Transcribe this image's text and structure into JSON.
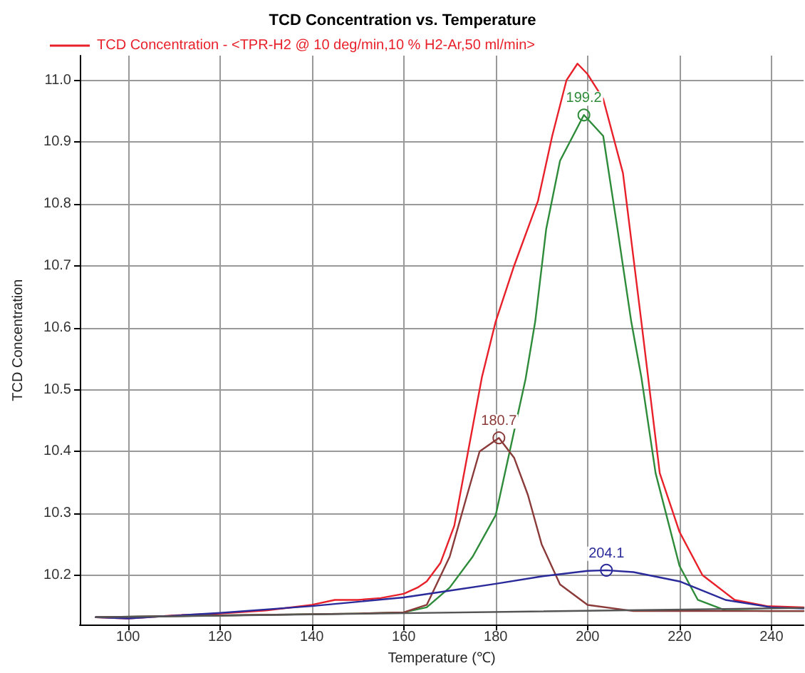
{
  "chart_data": {
    "type": "line",
    "title": "TCD Concentration vs. Temperature",
    "xlabel": "Temperature (℃)",
    "ylabel": "TCD Concentration",
    "xlim": [
      89.5,
      247
    ],
    "xticks": [
      100,
      120,
      140,
      160,
      180,
      200,
      220,
      240
    ],
    "ylim": [
      10.12,
      11.04
    ],
    "yticks": [
      10.2,
      10.3,
      10.4,
      10.5,
      10.6,
      10.7,
      10.8,
      10.9,
      {
        "value": 11,
        "label": "11.0"
      }
    ],
    "grid": true,
    "legend": "top left",
    "marker": "none",
    "line_style": "solid",
    "series": [
      {
        "name": "TCD Concentration - <TPR-H2 @ 10 deg/min,10 % H2-Ar,50 ml/min>",
        "color": "#e8202a",
        "x": [
          93,
          100,
          110,
          120,
          130,
          140,
          145,
          150,
          155,
          160,
          163,
          165,
          168,
          171,
          174,
          177,
          180,
          184,
          189.2,
          192.3,
          195.4,
          197.8,
          200,
          203.4,
          207.7,
          211.7,
          215.7,
          220,
          225,
          232,
          239,
          247
        ],
        "values": [
          10.132,
          10.13,
          10.135,
          10.138,
          10.143,
          10.152,
          10.16,
          10.16,
          10.163,
          10.17,
          10.18,
          10.19,
          10.22,
          10.28,
          10.4,
          10.52,
          10.61,
          10.7,
          10.805,
          10.91,
          11.0,
          11.027,
          11.01,
          10.97,
          10.85,
          10.61,
          10.365,
          10.27,
          10.2,
          10.16,
          10.15,
          10.148
        ]
      },
      {
        "color": "#2e8b3a",
        "x": [
          93,
          120,
          150,
          160,
          165,
          170,
          175,
          180,
          186.5,
          188.6,
          191,
          194,
          199.2,
          203.4,
          206.5,
          209.5,
          211.7,
          214.8,
          220,
          224,
          230,
          240,
          247
        ],
        "values": [
          10.132,
          10.135,
          10.138,
          10.14,
          10.148,
          10.18,
          10.23,
          10.297,
          10.517,
          10.61,
          10.76,
          10.87,
          10.944,
          10.91,
          10.76,
          10.61,
          10.52,
          10.365,
          10.215,
          10.16,
          10.143,
          10.142,
          10.142
        ]
      },
      {
        "color": "#8b3a3a",
        "x": [
          93,
          120,
          150,
          160,
          165,
          170,
          173.8,
          176.5,
          180.7,
          184,
          187,
          190,
          194,
          200,
          210,
          230,
          247
        ],
        "values": [
          10.132,
          10.135,
          10.138,
          10.14,
          10.152,
          10.23,
          10.33,
          10.4,
          10.422,
          10.39,
          10.33,
          10.25,
          10.185,
          10.152,
          10.142,
          10.142,
          10.142
        ]
      },
      {
        "color": "#2a2a9a",
        "x": [
          93,
          100,
          120,
          140,
          150,
          160,
          170,
          180,
          190,
          200,
          204.1,
          210,
          220,
          230,
          240,
          247
        ],
        "values": [
          10.132,
          10.13,
          10.139,
          10.15,
          10.157,
          10.164,
          10.175,
          10.186,
          10.198,
          10.207,
          10.208,
          10.205,
          10.19,
          10.16,
          10.148,
          10.146
        ]
      },
      {
        "color": "#555555",
        "x": [
          93,
          247
        ],
        "values": [
          10.132,
          10.147
        ]
      }
    ],
    "annotations": [
      {
        "text": "180.7",
        "x": 180.7,
        "y": 10.422
      },
      {
        "text": "199.2",
        "x": 199.2,
        "y": 10.944
      },
      {
        "text": "204.1",
        "x": 204.1,
        "y": 10.208
      }
    ]
  }
}
